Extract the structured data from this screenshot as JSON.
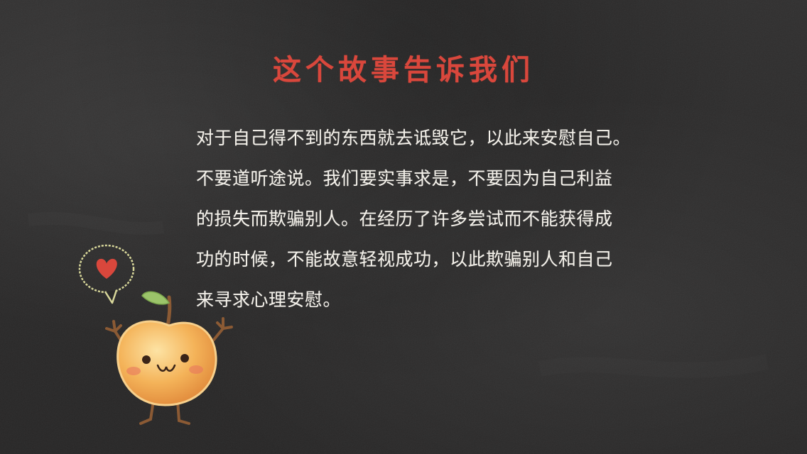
{
  "slide": {
    "title": "这个故事告诉我们",
    "body_lines": [
      "对于自己得不到的东西就去诋毁它，以此来安慰自己。",
      "不要道听途说。我们要实事求是，不要因为自己利益",
      "的损失而欺骗别人。在经历了许多尝试而不能获得成",
      "功的时候，不能故意轻视成功，以此欺骗别人和自己",
      "来寻求心理安慰。"
    ]
  },
  "colors": {
    "background": "#2b2a2a",
    "title": "#d9473c",
    "body_text": "#f4f1ea",
    "apple": "#f2a54a",
    "heart": "#d9473c",
    "leaf": "#9bc46a"
  },
  "icons": {
    "decoration": "apple-character-illustration",
    "speech": "heart-speech-bubble-icon"
  }
}
